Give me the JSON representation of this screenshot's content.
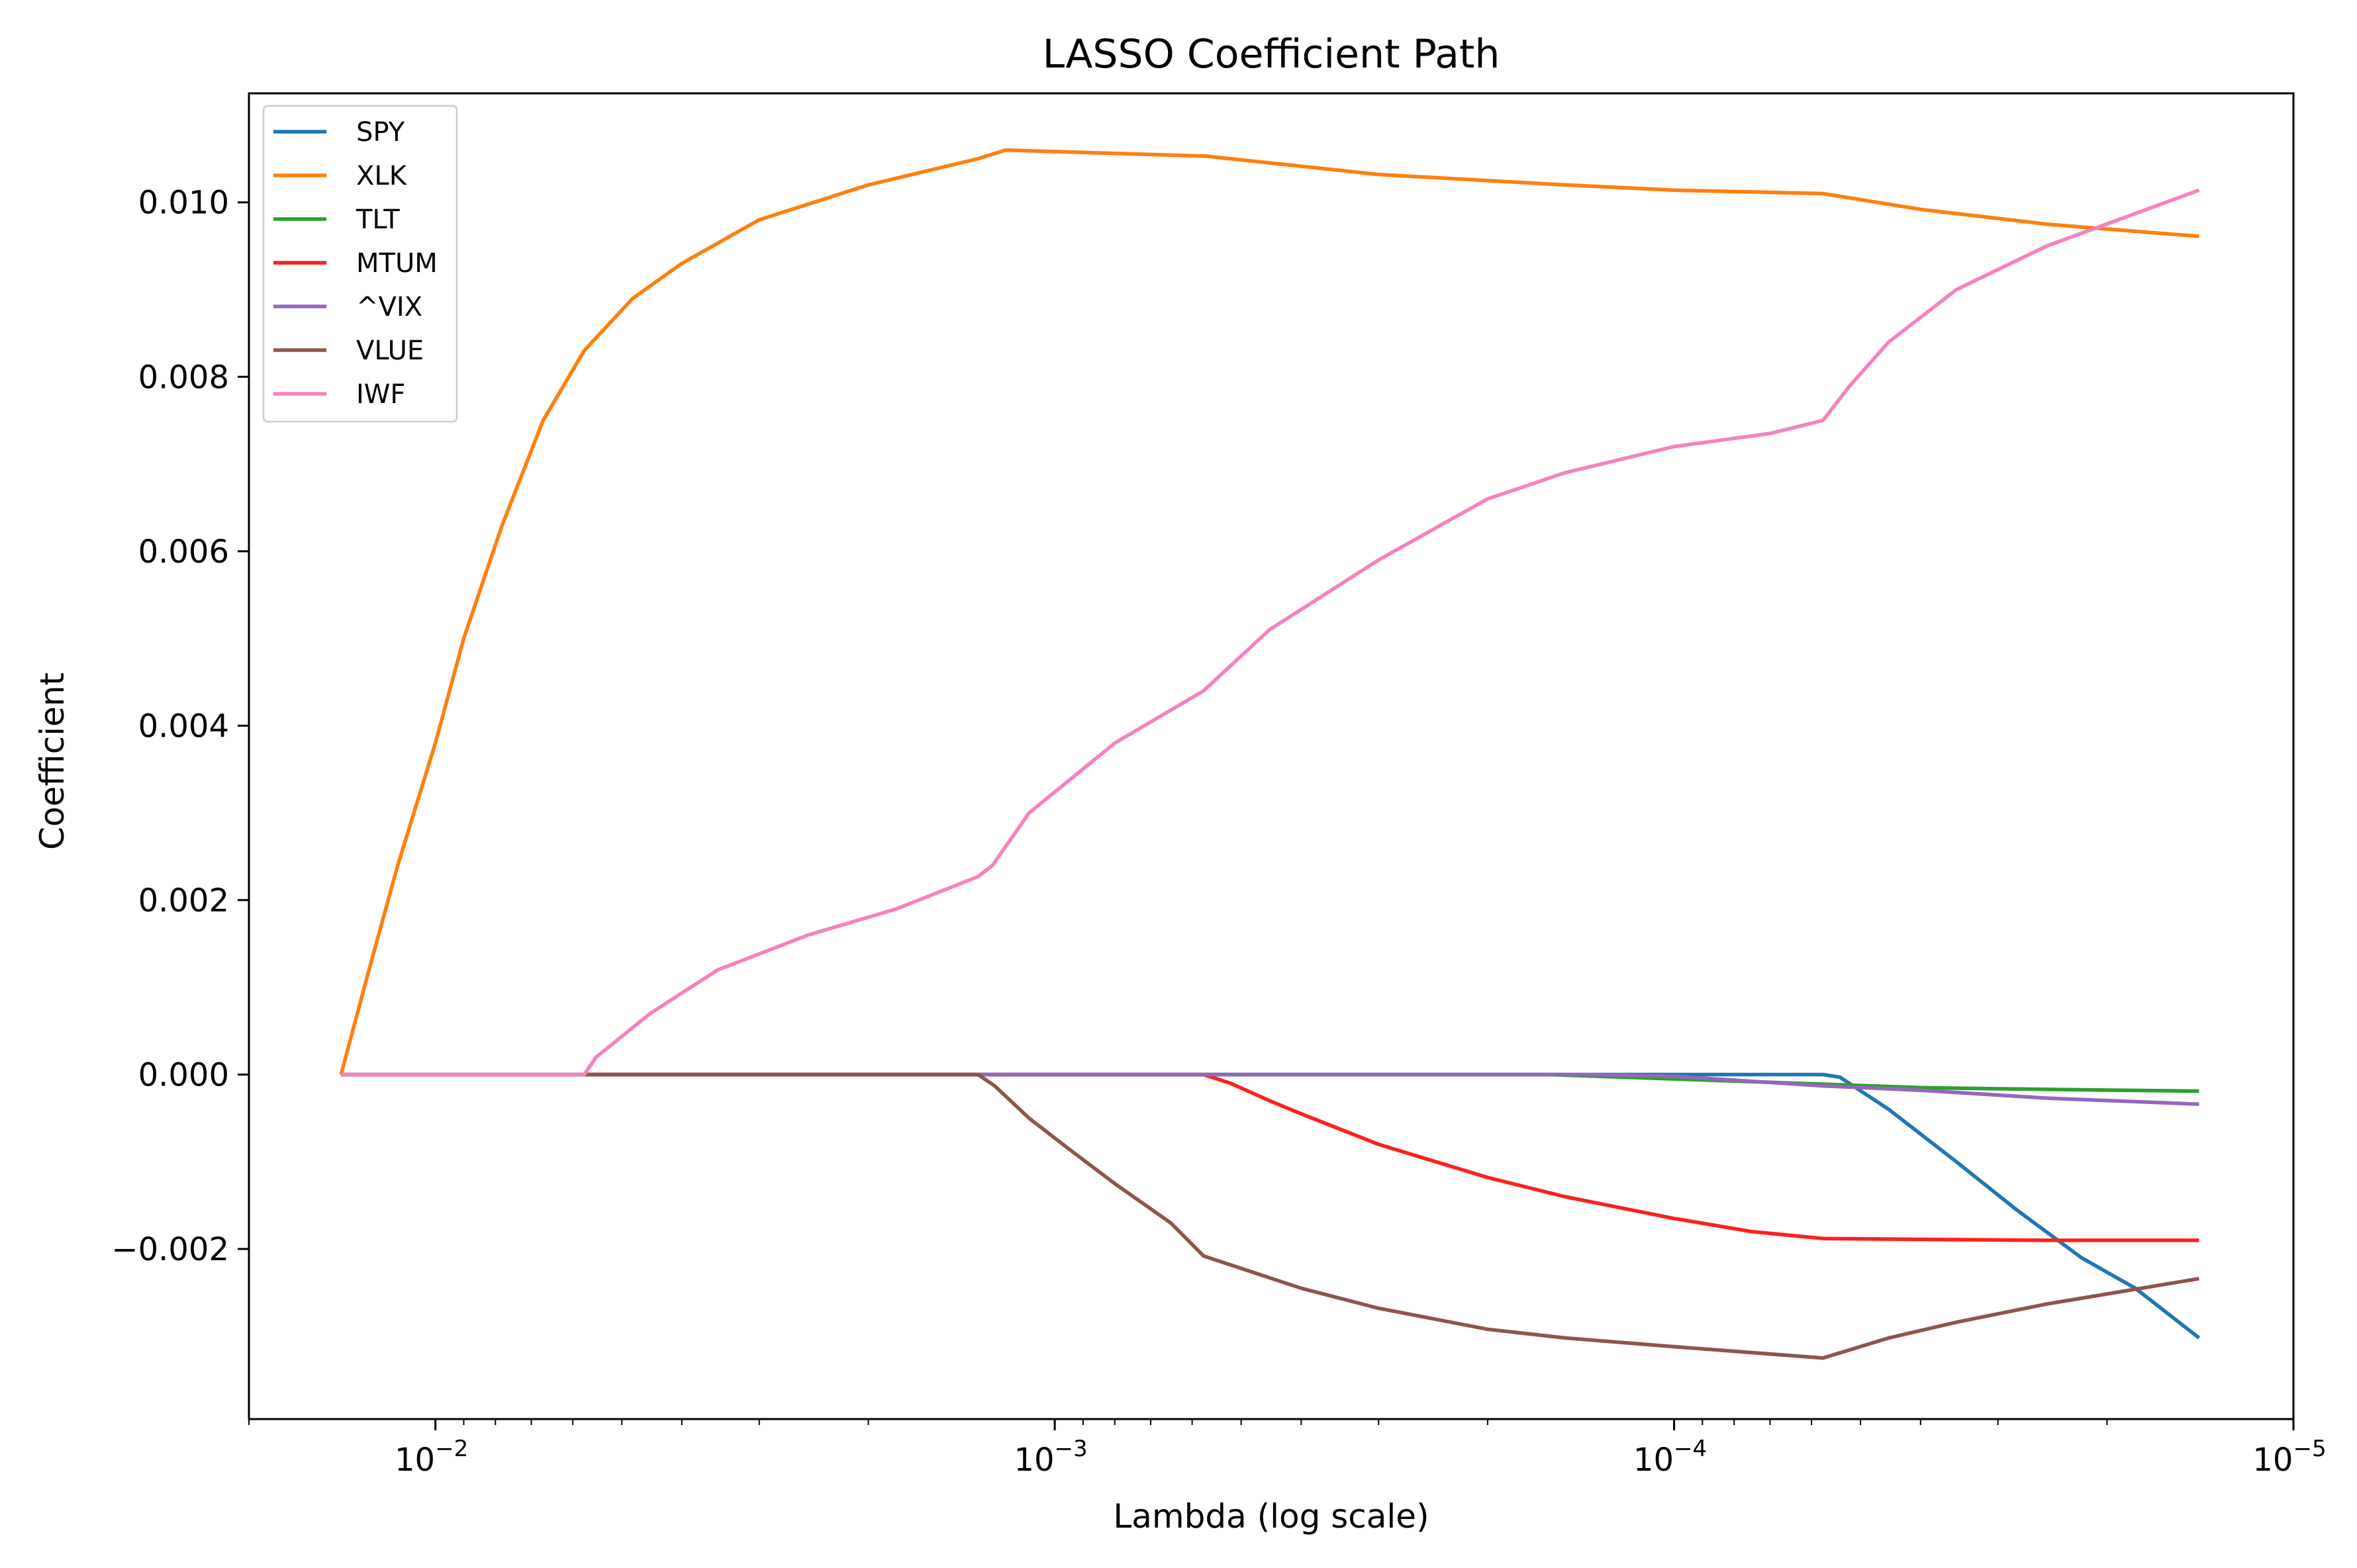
{
  "chart_data": {
    "type": "line",
    "title": "LASSO Coefficient Path",
    "xlabel": "Lambda (log scale)",
    "ylabel": "Coefficient",
    "x_scale": "log",
    "x_reversed": true,
    "xlim": [
      0.02,
      1e-05
    ],
    "ylim": [
      -0.00395,
      0.01125
    ],
    "x_ticks": [
      {
        "value": 0.01,
        "base": "10",
        "exp": "−2"
      },
      {
        "value": 0.001,
        "base": "10",
        "exp": "−3"
      },
      {
        "value": 0.0001,
        "base": "10",
        "exp": "−4"
      },
      {
        "value": 1e-05,
        "base": "10",
        "exp": "−5"
      }
    ],
    "y_ticks": [
      {
        "value": -0.002,
        "label": "−0.002"
      },
      {
        "value": 0.0,
        "label": "0.000"
      },
      {
        "value": 0.002,
        "label": "0.002"
      },
      {
        "value": 0.004,
        "label": "0.004"
      },
      {
        "value": 0.006,
        "label": "0.006"
      },
      {
        "value": 0.008,
        "label": "0.008"
      },
      {
        "value": 0.01,
        "label": "0.010"
      }
    ],
    "legend_position": "top-left",
    "series": [
      {
        "name": "SPY",
        "color": "#1f77b4",
        "points": [
          [
            0.0142,
            0
          ],
          [
            0.00575,
            0
          ],
          [
            0.00133,
            0
          ],
          [
            0.000575,
            0
          ],
          [
            0.0003,
            0
          ],
          [
            0.0001,
            0
          ],
          [
            5.75e-05,
            0
          ],
          [
            5.4e-05,
            -3e-05
          ],
          [
            4.5e-05,
            -0.0004
          ],
          [
            3.5e-05,
            -0.001
          ],
          [
            2.8e-05,
            -0.00155
          ],
          [
            2.2e-05,
            -0.0021
          ],
          [
            1.8e-05,
            -0.00245
          ],
          [
            1.42e-05,
            -0.00302
          ]
        ]
      },
      {
        "name": "XLK",
        "color": "#ff7f0e",
        "points": [
          [
            0.0142,
            0
          ],
          [
            0.0128,
            0.0012
          ],
          [
            0.0115,
            0.0024
          ],
          [
            0.01,
            0.0038
          ],
          [
            0.009,
            0.005
          ],
          [
            0.0078,
            0.0063
          ],
          [
            0.0067,
            0.0075
          ],
          [
            0.00575,
            0.0083
          ],
          [
            0.0048,
            0.0089
          ],
          [
            0.004,
            0.0093
          ],
          [
            0.003,
            0.0098
          ],
          [
            0.002,
            0.0102
          ],
          [
            0.00133,
            0.0105
          ],
          [
            0.0012,
            0.0106
          ],
          [
            0.00057,
            0.01053
          ],
          [
            0.0003,
            0.01032
          ],
          [
            0.00015,
            0.0102
          ],
          [
            0.0001,
            0.01014
          ],
          [
            5.75e-05,
            0.0101
          ],
          [
            4e-05,
            0.00992
          ],
          [
            2.5e-05,
            0.00975
          ],
          [
            1.42e-05,
            0.00961
          ]
        ]
      },
      {
        "name": "TLT",
        "color": "#2ca02c",
        "points": [
          [
            0.0142,
            0
          ],
          [
            0.000575,
            0
          ],
          [
            0.00025,
            0
          ],
          [
            0.00016,
            0
          ],
          [
            0.0001,
            -5e-05
          ],
          [
            5.75e-05,
            -0.00011
          ],
          [
            4e-05,
            -0.00015
          ],
          [
            2.5e-05,
            -0.00017
          ],
          [
            1.42e-05,
            -0.00019
          ]
        ]
      },
      {
        "name": "MTUM",
        "color": "#ff1f1f",
        "points": [
          [
            0.0142,
            0
          ],
          [
            0.000575,
            0
          ],
          [
            0.00052,
            -0.0001
          ],
          [
            0.00045,
            -0.0003
          ],
          [
            0.0004,
            -0.00045
          ],
          [
            0.0003,
            -0.0008
          ],
          [
            0.0002,
            -0.00118
          ],
          [
            0.00015,
            -0.0014
          ],
          [
            0.0001,
            -0.00165
          ],
          [
            7.5e-05,
            -0.0018
          ],
          [
            5.75e-05,
            -0.00188
          ],
          [
            4e-05,
            -0.00189
          ],
          [
            2.5e-05,
            -0.0019
          ],
          [
            1.42e-05,
            -0.0019
          ]
        ]
      },
      {
        "name": "^VIX",
        "color": "#9467bd",
        "points": [
          [
            0.0142,
            0
          ],
          [
            0.0002,
            0
          ],
          [
            0.00014,
            0
          ],
          [
            0.0001,
            -2e-05
          ],
          [
            5.75e-05,
            -0.00013
          ],
          [
            4e-05,
            -0.00018
          ],
          [
            2.5e-05,
            -0.00027
          ],
          [
            1.42e-05,
            -0.00034
          ]
        ]
      },
      {
        "name": "VLUE",
        "color": "#8c564b",
        "points": [
          [
            0.0142,
            0
          ],
          [
            0.00133,
            0
          ],
          [
            0.00125,
            -0.00013
          ],
          [
            0.0011,
            -0.0005
          ],
          [
            0.00095,
            -0.00085
          ],
          [
            0.0008,
            -0.00125
          ],
          [
            0.00065,
            -0.0017
          ],
          [
            0.000575,
            -0.00208
          ],
          [
            0.0004,
            -0.00245
          ],
          [
            0.0003,
            -0.00268
          ],
          [
            0.0002,
            -0.00292
          ],
          [
            0.00015,
            -0.00302
          ],
          [
            0.0001,
            -0.00312
          ],
          [
            5.75e-05,
            -0.00325
          ],
          [
            4.5e-05,
            -0.00302
          ],
          [
            3.5e-05,
            -0.00284
          ],
          [
            2.5e-05,
            -0.00263
          ],
          [
            1.42e-05,
            -0.00234
          ]
        ]
      },
      {
        "name": "IWF",
        "color": "#f781bf",
        "points": [
          [
            0.0142,
            0
          ],
          [
            0.00575,
            0
          ],
          [
            0.0055,
            0.0002
          ],
          [
            0.0045,
            0.0007
          ],
          [
            0.0035,
            0.0012
          ],
          [
            0.0025,
            0.0016
          ],
          [
            0.0018,
            0.0019
          ],
          [
            0.00133,
            0.00227
          ],
          [
            0.00126,
            0.0024
          ],
          [
            0.0011,
            0.003
          ],
          [
            0.0008,
            0.0038
          ],
          [
            0.000575,
            0.0044
          ],
          [
            0.00045,
            0.0051
          ],
          [
            0.0003,
            0.0059
          ],
          [
            0.0002,
            0.0066
          ],
          [
            0.00015,
            0.0069
          ],
          [
            0.0001,
            0.0072
          ],
          [
            7e-05,
            0.00735
          ],
          [
            5.75e-05,
            0.0075
          ],
          [
            5.2e-05,
            0.0079
          ],
          [
            4.5e-05,
            0.0084
          ],
          [
            3.5e-05,
            0.009
          ],
          [
            2.5e-05,
            0.0095
          ],
          [
            1.42e-05,
            0.01014
          ]
        ]
      }
    ]
  }
}
